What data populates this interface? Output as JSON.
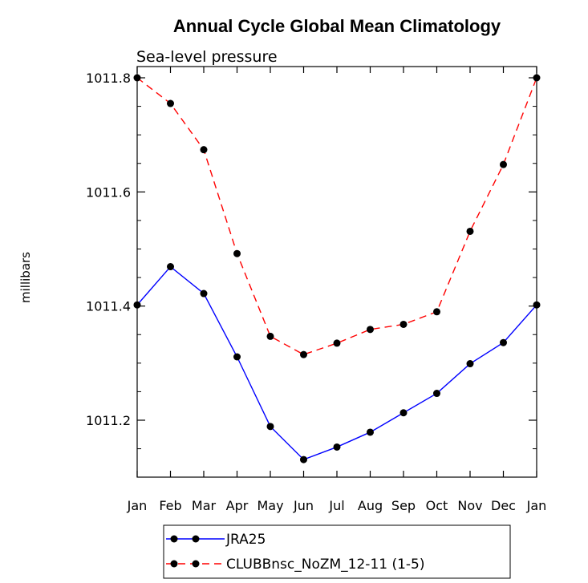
{
  "chart_data": {
    "type": "line",
    "title": "Annual Cycle Global Mean Climatology",
    "subtitle": "Sea-level pressure",
    "ylabel": "millibars",
    "xlabel": "",
    "categories": [
      "Jan",
      "Feb",
      "Mar",
      "Apr",
      "May",
      "Jun",
      "Jul",
      "Aug",
      "Sep",
      "Oct",
      "Nov",
      "Dec",
      "Jan"
    ],
    "ylim": [
      1011.1,
      1011.8
    ],
    "ytick_values": [
      1011.2,
      1011.4,
      1011.6,
      1011.8
    ],
    "ytick_labels": [
      "1011.2",
      "1011.4",
      "1011.6",
      "1011.8"
    ],
    "grid": false,
    "legend_position": "bottom",
    "series": [
      {
        "name": "JRA25",
        "color": "#0000ff",
        "line_style": "solid",
        "marker": "filled-circle",
        "values": [
          1011.402,
          1011.469,
          1011.422,
          1011.311,
          1011.189,
          1011.131,
          1011.153,
          1011.179,
          1011.213,
          1011.247,
          1011.299,
          1011.336,
          1011.402
        ]
      },
      {
        "name": "CLUBBnsc_NoZM_12-11 (1-5)",
        "color": "#ff0000",
        "line_style": "dashed",
        "marker": "filled-circle",
        "values": [
          1011.8,
          1011.755,
          1011.674,
          1011.492,
          1011.347,
          1011.315,
          1011.335,
          1011.359,
          1011.368,
          1011.39,
          1011.531,
          1011.648,
          1011.8
        ]
      }
    ]
  }
}
